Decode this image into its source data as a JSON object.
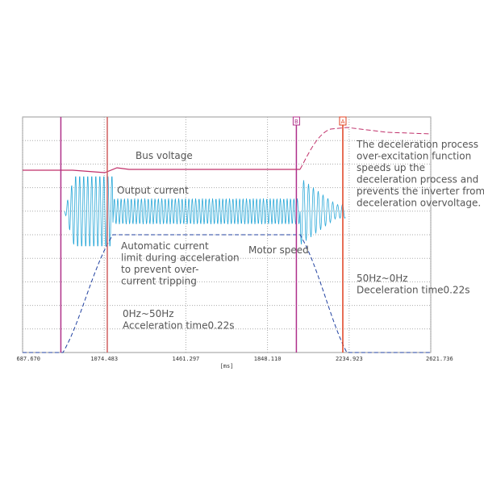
{
  "chart_data": {
    "type": "line",
    "x_label": "[ms]",
    "xlim": [
      687.67,
      2621.736
    ],
    "xticks": [
      {
        "value": 687.67,
        "label": "687.670"
      },
      {
        "value": 1074.483,
        "label": "1074.483"
      },
      {
        "value": 1461.297,
        "label": "1461.297"
      },
      {
        "value": 1848.11,
        "label": "1848.110"
      },
      {
        "value": 2234.923,
        "label": "2234.923"
      },
      {
        "value": 2621.736,
        "label": "2621.736"
      }
    ],
    "cursors": [
      {
        "x": 869,
        "color": "#b0308a"
      },
      {
        "x": 1089,
        "color": "#d06060"
      },
      {
        "x": 1985,
        "color": "#b0308a",
        "label": "B"
      },
      {
        "x": 2205,
        "color": "#e04020",
        "label": "A"
      }
    ],
    "annotations": [
      {
        "lines": [
          "Bus voltage"
        ]
      },
      {
        "lines": [
          "Output current"
        ]
      },
      {
        "lines": [
          "Automatic current",
          "limit during acceleration",
          "to prevent over-",
          "current tripping"
        ]
      },
      {
        "lines": [
          "Motor speed"
        ]
      },
      {
        "lines": [
          "0Hz~50Hz",
          "Acceleration time0.22s"
        ]
      },
      {
        "lines": [
          "The deceleration process",
          "over-excitation function",
          "speeds up the",
          "deceleration process and",
          "prevents the inverter from",
          "deceleration overvoltage."
        ]
      },
      {
        "lines": [
          "50Hz~0Hz",
          "Deceleration time0.22s"
        ]
      }
    ]
  }
}
